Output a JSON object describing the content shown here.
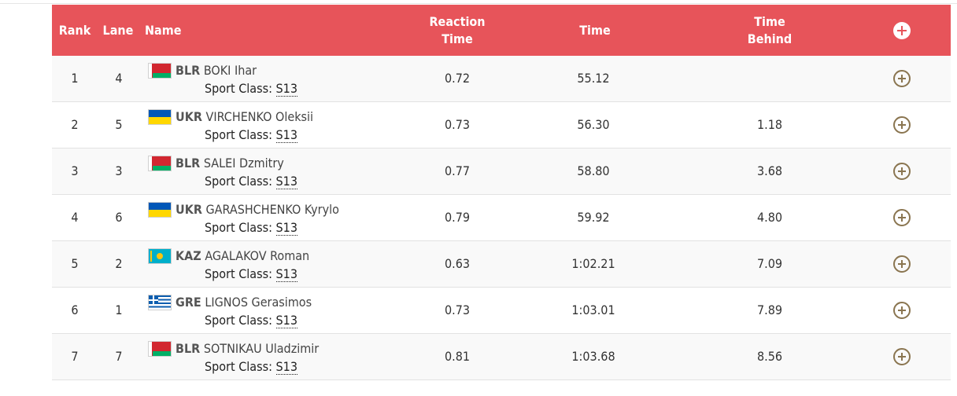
{
  "header": {
    "rank": "Rank",
    "lane": "Lane",
    "name": "Name",
    "reaction_time": "Reaction\nTime",
    "time": "Time",
    "time_behind": "Time\nBehind",
    "expand_all_icon": "plus-circle-icon"
  },
  "sport_class_label": "Sport Class:",
  "rows": [
    {
      "rank": "1",
      "lane": "4",
      "flag": "BLR",
      "noc": "BLR",
      "name": "BOKI Ihar",
      "sport_class": "S13",
      "reaction": "0.72",
      "time": "55.12",
      "behind": ""
    },
    {
      "rank": "2",
      "lane": "5",
      "flag": "UKR",
      "noc": "UKR",
      "name": "VIRCHENKO Oleksii",
      "sport_class": "S13",
      "reaction": "0.73",
      "time": "56.30",
      "behind": "1.18"
    },
    {
      "rank": "3",
      "lane": "3",
      "flag": "BLR",
      "noc": "BLR",
      "name": "SALEI Dzmitry",
      "sport_class": "S13",
      "reaction": "0.77",
      "time": "58.80",
      "behind": "3.68"
    },
    {
      "rank": "4",
      "lane": "6",
      "flag": "UKR",
      "noc": "UKR",
      "name": "GARASHCHENKO Kyrylo",
      "sport_class": "S13",
      "reaction": "0.79",
      "time": "59.92",
      "behind": "4.80"
    },
    {
      "rank": "5",
      "lane": "2",
      "flag": "KAZ",
      "noc": "KAZ",
      "name": "AGALAKOV Roman",
      "sport_class": "S13",
      "reaction": "0.63",
      "time": "1:02.21",
      "behind": "7.09"
    },
    {
      "rank": "6",
      "lane": "1",
      "flag": "GRE",
      "noc": "GRE",
      "name": "LIGNOS Gerasimos",
      "sport_class": "S13",
      "reaction": "0.73",
      "time": "1:03.01",
      "behind": "7.89"
    },
    {
      "rank": "7",
      "lane": "7",
      "flag": "BLR",
      "noc": "BLR",
      "name": "SOTNIKAU Uladzimir",
      "sport_class": "S13",
      "reaction": "0.81",
      "time": "1:03.68",
      "behind": "8.56"
    }
  ],
  "colors": {
    "header_bg": "#e7545a",
    "plus_icon": "#8a7550"
  }
}
